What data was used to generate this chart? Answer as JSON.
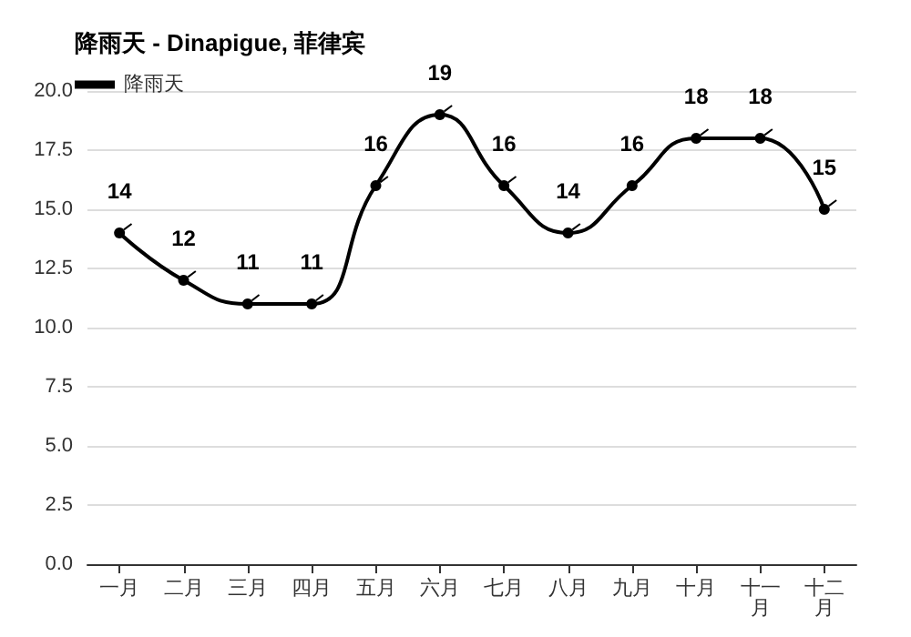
{
  "chart_data": {
    "type": "line",
    "title": "降雨天 - Dinapigue, 菲律宾",
    "categories": [
      "一月",
      "二月",
      "三月",
      "四月",
      "五月",
      "六月",
      "七月",
      "八月",
      "九月",
      "十月",
      "十一月",
      "十二月"
    ],
    "series": [
      {
        "name": "降雨天",
        "color": "#000000",
        "values": [
          14,
          12,
          11,
          11,
          16,
          19,
          16,
          14,
          16,
          18,
          18,
          15
        ]
      }
    ],
    "ylim": [
      0,
      20
    ],
    "yticks": [
      {
        "value": 0,
        "label": "0.0"
      },
      {
        "value": 2.5,
        "label": "2.5"
      },
      {
        "value": 5,
        "label": "5.0"
      },
      {
        "value": 7.5,
        "label": "7.5"
      },
      {
        "value": 10,
        "label": "10.0"
      },
      {
        "value": 12.5,
        "label": "12.5"
      },
      {
        "value": 15,
        "label": "15.0"
      },
      {
        "value": 17.5,
        "label": "17.5"
      },
      {
        "value": 20,
        "label": "20.0"
      }
    ],
    "grid": "y",
    "legend": "top left",
    "marker": "circle",
    "line_style": "solid",
    "data_labels": true
  }
}
